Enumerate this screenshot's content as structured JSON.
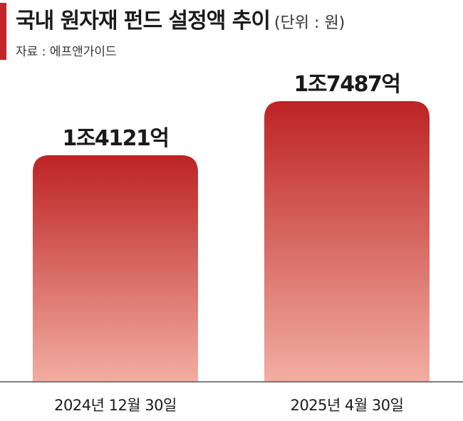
{
  "header": {
    "title": "국내 원자재 펀드 설정액 추이",
    "unit": "(단위 : 원)",
    "source": "자료 : 에프앤가이드"
  },
  "colors": {
    "accent": "#c4262c",
    "bar_top": "#bd2325",
    "bar_bottom": "#f2aea1"
  },
  "chart_data": {
    "type": "bar",
    "categories": [
      "2024년 12월 30일",
      "2025년 4월 30일"
    ],
    "values": [
      14121,
      17487
    ],
    "value_unit": "억원",
    "data_labels": [
      "1조4121억",
      "1조7487억"
    ],
    "ylim": [
      0,
      17487
    ],
    "grid": false,
    "legend": "none"
  }
}
